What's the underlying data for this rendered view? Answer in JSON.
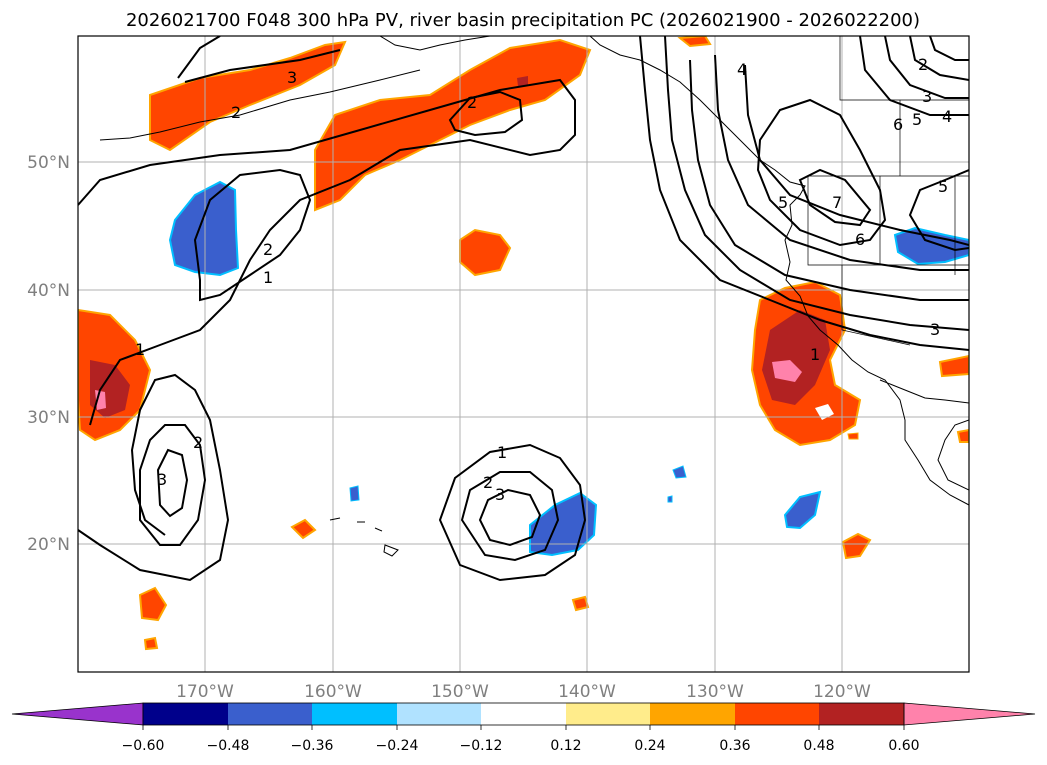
{
  "title": "2026021700 F048 300 hPa PV, river basin precipitation PC (2026021900 - 2026022200)",
  "colors": {
    "neg5": "#9933cc",
    "neg4": "#00008b",
    "neg3": "#3a5fcd",
    "neg2": "#00bfff",
    "neg1": "#b0e2ff",
    "zero": "#ffffff",
    "pos1": "#ffec8b",
    "pos2": "#ffa500",
    "pos3": "#ff4500",
    "pos4": "#b22222",
    "pos5": "#ff82ab"
  },
  "map": {
    "lat_ticks": [
      "50°N",
      "40°N",
      "30°N",
      "20°N"
    ],
    "lon_ticks": [
      "170°W",
      "160°W",
      "150°W",
      "140°W",
      "130°W",
      "120°W"
    ]
  },
  "contour_labels": [
    "1",
    "2",
    "3",
    "4",
    "5",
    "6",
    "7"
  ],
  "colorbar": {
    "ticks": [
      "−0.60",
      "−0.48",
      "−0.36",
      "−0.24",
      "−0.12",
      "0.12",
      "0.24",
      "0.36",
      "0.48",
      "0.60"
    ]
  }
}
